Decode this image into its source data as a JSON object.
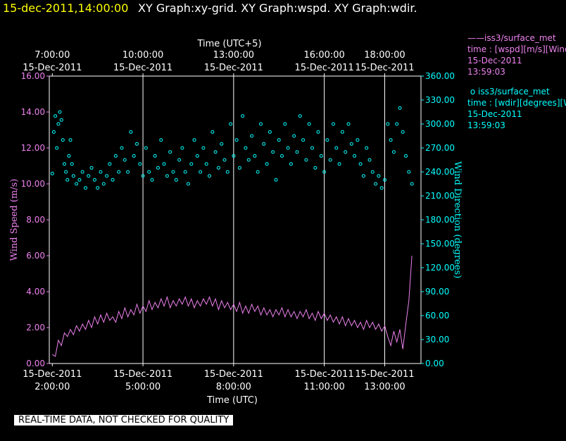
{
  "header": {
    "timestamp": "15-dec-2011,14:00:00",
    "graphs": "XY Graph:xy-grid.  XY Graph:wspd.  XY Graph:wdir."
  },
  "colors": {
    "wspd": "#ee82ee",
    "wdir": "#00ffff",
    "axis_left": "#ee82ee",
    "axis_right": "#00ffff",
    "grid": "#ffffff",
    "text": "#ffffff",
    "header_time": "#ffff00"
  },
  "legend": {
    "wspd": {
      "marker": "——",
      "name": "iss3/surface_met",
      "var": "time : [wspd][m/s][Wind",
      "date": "15-Dec-2011",
      "time": "13:59:03"
    },
    "wdir": {
      "marker": "o",
      "name": "iss3/surface_met",
      "var": "time : [wdir][degrees][W",
      "date": "15-Dec-2011",
      "time": "13:59:03"
    }
  },
  "footer": {
    "warning": "REAL-TIME DATA, NOT CHECKED FOR QUALITY"
  },
  "chart_data": {
    "type": "line",
    "top_axis": {
      "label": "Time (UTC+5)",
      "ticks": [
        {
          "hours": 2.0,
          "time": "7:00:00",
          "date": "15-Dec-2011"
        },
        {
          "hours": 5.0,
          "time": "10:00:00",
          "date": "15-Dec-2011"
        },
        {
          "hours": 8.0,
          "time": "13:00:00",
          "date": "15-Dec-2011"
        },
        {
          "hours": 11.0,
          "time": "16:00:00",
          "date": "15-Dec-2011"
        },
        {
          "hours": 13.0,
          "time": "18:00:00",
          "date": "15-Dec-2011"
        }
      ]
    },
    "bottom_axis": {
      "label": "Time (UTC)",
      "xlim": [
        1.9,
        14.2
      ],
      "ticks": [
        {
          "hours": 2.0,
          "date": "15-Dec-2011",
          "time": "2:00:00"
        },
        {
          "hours": 5.0,
          "date": "15-Dec-2011",
          "time": "5:00:00"
        },
        {
          "hours": 8.0,
          "date": "15-Dec-2011",
          "time": "8:00:00"
        },
        {
          "hours": 11.0,
          "date": "15-Dec-2011",
          "time": "11:00:00"
        },
        {
          "hours": 13.0,
          "date": "15-Dec-2011",
          "time": "13:00:00"
        }
      ]
    },
    "vertical_grid_hours": [
      5.0,
      8.0,
      11.0,
      13.0
    ],
    "left_axis": {
      "label": "Wind Speed (m/s)",
      "ylim": [
        0,
        16
      ],
      "ticks": [
        "0.00",
        "2.00",
        "4.00",
        "6.00",
        "8.00",
        "10.00",
        "12.00",
        "14.00",
        "16.00"
      ]
    },
    "right_axis": {
      "label": "Wind Direction (degrees)",
      "ylim": [
        0,
        360
      ],
      "ticks": [
        "0.00",
        "30.00",
        "60.00",
        "90.00",
        "120.00",
        "150.00",
        "180.00",
        "210.00",
        "240.00",
        "270.00",
        "300.00",
        "330.00",
        "360.00"
      ]
    },
    "series": [
      {
        "name": "iss3/surface_met wspd",
        "style": "line",
        "points": [
          [
            2.0,
            0.5
          ],
          [
            2.1,
            0.4
          ],
          [
            2.2,
            1.3
          ],
          [
            2.3,
            1.0
          ],
          [
            2.4,
            1.7
          ],
          [
            2.5,
            1.5
          ],
          [
            2.6,
            1.9
          ],
          [
            2.7,
            1.6
          ],
          [
            2.8,
            2.1
          ],
          [
            2.9,
            1.8
          ],
          [
            3.0,
            2.2
          ],
          [
            3.1,
            1.9
          ],
          [
            3.2,
            2.4
          ],
          [
            3.3,
            2.0
          ],
          [
            3.4,
            2.6
          ],
          [
            3.5,
            2.2
          ],
          [
            3.6,
            2.7
          ],
          [
            3.7,
            2.3
          ],
          [
            3.8,
            2.8
          ],
          [
            3.9,
            2.4
          ],
          [
            4.0,
            2.6
          ],
          [
            4.1,
            2.3
          ],
          [
            4.2,
            2.9
          ],
          [
            4.3,
            2.5
          ],
          [
            4.4,
            3.1
          ],
          [
            4.5,
            2.6
          ],
          [
            4.6,
            3.0
          ],
          [
            4.7,
            2.7
          ],
          [
            4.8,
            3.3
          ],
          [
            4.9,
            2.8
          ],
          [
            5.0,
            3.2
          ],
          [
            5.1,
            2.9
          ],
          [
            5.2,
            3.5
          ],
          [
            5.3,
            3.0
          ],
          [
            5.4,
            3.4
          ],
          [
            5.5,
            3.1
          ],
          [
            5.6,
            3.6
          ],
          [
            5.7,
            3.2
          ],
          [
            5.8,
            3.7
          ],
          [
            5.9,
            3.1
          ],
          [
            6.0,
            3.5
          ],
          [
            6.1,
            3.2
          ],
          [
            6.2,
            3.6
          ],
          [
            6.3,
            3.3
          ],
          [
            6.4,
            3.7
          ],
          [
            6.5,
            3.2
          ],
          [
            6.6,
            3.6
          ],
          [
            6.7,
            3.1
          ],
          [
            6.8,
            3.5
          ],
          [
            6.9,
            3.2
          ],
          [
            7.0,
            3.6
          ],
          [
            7.1,
            3.3
          ],
          [
            7.2,
            3.7
          ],
          [
            7.3,
            3.2
          ],
          [
            7.4,
            3.6
          ],
          [
            7.5,
            3.0
          ],
          [
            7.6,
            3.5
          ],
          [
            7.7,
            3.1
          ],
          [
            7.8,
            3.4
          ],
          [
            7.9,
            3.0
          ],
          [
            8.0,
            3.3
          ],
          [
            8.1,
            2.9
          ],
          [
            8.2,
            3.4
          ],
          [
            8.3,
            2.8
          ],
          [
            8.4,
            3.2
          ],
          [
            8.5,
            2.8
          ],
          [
            8.6,
            3.3
          ],
          [
            8.7,
            2.9
          ],
          [
            8.8,
            3.2
          ],
          [
            8.9,
            2.7
          ],
          [
            9.0,
            3.1
          ],
          [
            9.1,
            2.7
          ],
          [
            9.2,
            3.0
          ],
          [
            9.3,
            2.6
          ],
          [
            9.4,
            3.0
          ],
          [
            9.5,
            2.7
          ],
          [
            9.6,
            3.1
          ],
          [
            9.7,
            2.6
          ],
          [
            9.8,
            3.0
          ],
          [
            9.9,
            2.6
          ],
          [
            10.0,
            2.9
          ],
          [
            10.1,
            2.5
          ],
          [
            10.2,
            2.9
          ],
          [
            10.3,
            2.6
          ],
          [
            10.4,
            3.0
          ],
          [
            10.5,
            2.5
          ],
          [
            10.6,
            2.8
          ],
          [
            10.7,
            2.4
          ],
          [
            10.8,
            2.9
          ],
          [
            10.9,
            2.5
          ],
          [
            11.0,
            2.8
          ],
          [
            11.1,
            2.4
          ],
          [
            11.2,
            2.7
          ],
          [
            11.3,
            2.3
          ],
          [
            11.4,
            2.6
          ],
          [
            11.5,
            2.2
          ],
          [
            11.6,
            2.6
          ],
          [
            11.7,
            2.1
          ],
          [
            11.8,
            2.5
          ],
          [
            11.9,
            2.1
          ],
          [
            12.0,
            2.4
          ],
          [
            12.1,
            2.0
          ],
          [
            12.2,
            2.3
          ],
          [
            12.3,
            1.9
          ],
          [
            12.4,
            2.4
          ],
          [
            12.5,
            2.0
          ],
          [
            12.6,
            2.3
          ],
          [
            12.7,
            1.9
          ],
          [
            12.8,
            2.2
          ],
          [
            12.9,
            1.8
          ],
          [
            13.0,
            2.1
          ],
          [
            13.1,
            1.5
          ],
          [
            13.2,
            1.0
          ],
          [
            13.3,
            1.8
          ],
          [
            13.4,
            1.2
          ],
          [
            13.5,
            1.9
          ],
          [
            13.6,
            0.8
          ],
          [
            13.7,
            2.2
          ],
          [
            13.8,
            3.5
          ],
          [
            13.9,
            6.0
          ]
        ]
      },
      {
        "name": "iss3/surface_met wdir",
        "style": "circle",
        "points": [
          [
            2.0,
            238
          ],
          [
            2.05,
            290
          ],
          [
            2.1,
            310
          ],
          [
            2.15,
            270
          ],
          [
            2.2,
            300
          ],
          [
            2.25,
            315
          ],
          [
            2.3,
            305
          ],
          [
            2.35,
            280
          ],
          [
            2.4,
            250
          ],
          [
            2.45,
            240
          ],
          [
            2.5,
            230
          ],
          [
            2.55,
            260
          ],
          [
            2.6,
            280
          ],
          [
            2.65,
            250
          ],
          [
            2.7,
            235
          ],
          [
            2.8,
            225
          ],
          [
            2.9,
            230
          ],
          [
            3.0,
            240
          ],
          [
            3.1,
            220
          ],
          [
            3.2,
            235
          ],
          [
            3.3,
            245
          ],
          [
            3.4,
            230
          ],
          [
            3.5,
            220
          ],
          [
            3.6,
            240
          ],
          [
            3.7,
            225
          ],
          [
            3.8,
            235
          ],
          [
            3.9,
            250
          ],
          [
            4.0,
            230
          ],
          [
            4.1,
            260
          ],
          [
            4.2,
            240
          ],
          [
            4.3,
            270
          ],
          [
            4.4,
            255
          ],
          [
            4.5,
            240
          ],
          [
            4.6,
            290
          ],
          [
            4.7,
            260
          ],
          [
            4.8,
            275
          ],
          [
            4.9,
            250
          ],
          [
            5.0,
            235
          ],
          [
            5.1,
            270
          ],
          [
            5.2,
            240
          ],
          [
            5.3,
            230
          ],
          [
            5.4,
            260
          ],
          [
            5.5,
            245
          ],
          [
            5.6,
            280
          ],
          [
            5.7,
            250
          ],
          [
            5.8,
            235
          ],
          [
            5.9,
            265
          ],
          [
            6.0,
            240
          ],
          [
            6.1,
            230
          ],
          [
            6.2,
            255
          ],
          [
            6.3,
            270
          ],
          [
            6.4,
            240
          ],
          [
            6.5,
            225
          ],
          [
            6.6,
            250
          ],
          [
            6.7,
            280
          ],
          [
            6.8,
            260
          ],
          [
            6.9,
            240
          ],
          [
            7.0,
            270
          ],
          [
            7.1,
            250
          ],
          [
            7.2,
            235
          ],
          [
            7.3,
            290
          ],
          [
            7.4,
            265
          ],
          [
            7.5,
            245
          ],
          [
            7.6,
            275
          ],
          [
            7.7,
            255
          ],
          [
            7.8,
            240
          ],
          [
            7.9,
            300
          ],
          [
            8.0,
            260
          ],
          [
            8.1,
            280
          ],
          [
            8.2,
            245
          ],
          [
            8.3,
            310
          ],
          [
            8.4,
            270
          ],
          [
            8.5,
            255
          ],
          [
            8.6,
            285
          ],
          [
            8.7,
            260
          ],
          [
            8.8,
            240
          ],
          [
            8.9,
            300
          ],
          [
            9.0,
            275
          ],
          [
            9.1,
            250
          ],
          [
            9.2,
            290
          ],
          [
            9.3,
            265
          ],
          [
            9.4,
            230
          ],
          [
            9.5,
            280
          ],
          [
            9.6,
            260
          ],
          [
            9.7,
            300
          ],
          [
            9.8,
            270
          ],
          [
            9.9,
            250
          ],
          [
            10.0,
            285
          ],
          [
            10.1,
            265
          ],
          [
            10.2,
            310
          ],
          [
            10.3,
            280
          ],
          [
            10.4,
            255
          ],
          [
            10.5,
            300
          ],
          [
            10.6,
            270
          ],
          [
            10.7,
            245
          ],
          [
            10.8,
            290
          ],
          [
            10.9,
            260
          ],
          [
            11.0,
            240
          ],
          [
            11.1,
            280
          ],
          [
            11.2,
            255
          ],
          [
            11.3,
            300
          ],
          [
            11.4,
            270
          ],
          [
            11.5,
            250
          ],
          [
            11.6,
            290
          ],
          [
            11.7,
            265
          ],
          [
            11.8,
            300
          ],
          [
            11.9,
            275
          ],
          [
            12.0,
            260
          ],
          [
            12.1,
            280
          ],
          [
            12.2,
            250
          ],
          [
            12.3,
            235
          ],
          [
            12.4,
            270
          ],
          [
            12.5,
            255
          ],
          [
            12.6,
            240
          ],
          [
            12.7,
            225
          ],
          [
            12.8,
            235
          ],
          [
            12.9,
            220
          ],
          [
            13.0,
            230
          ],
          [
            13.1,
            300
          ],
          [
            13.2,
            280
          ],
          [
            13.3,
            265
          ],
          [
            13.4,
            300
          ],
          [
            13.5,
            320
          ],
          [
            13.6,
            290
          ],
          [
            13.7,
            260
          ],
          [
            13.8,
            240
          ],
          [
            13.9,
            225
          ]
        ]
      }
    ]
  }
}
